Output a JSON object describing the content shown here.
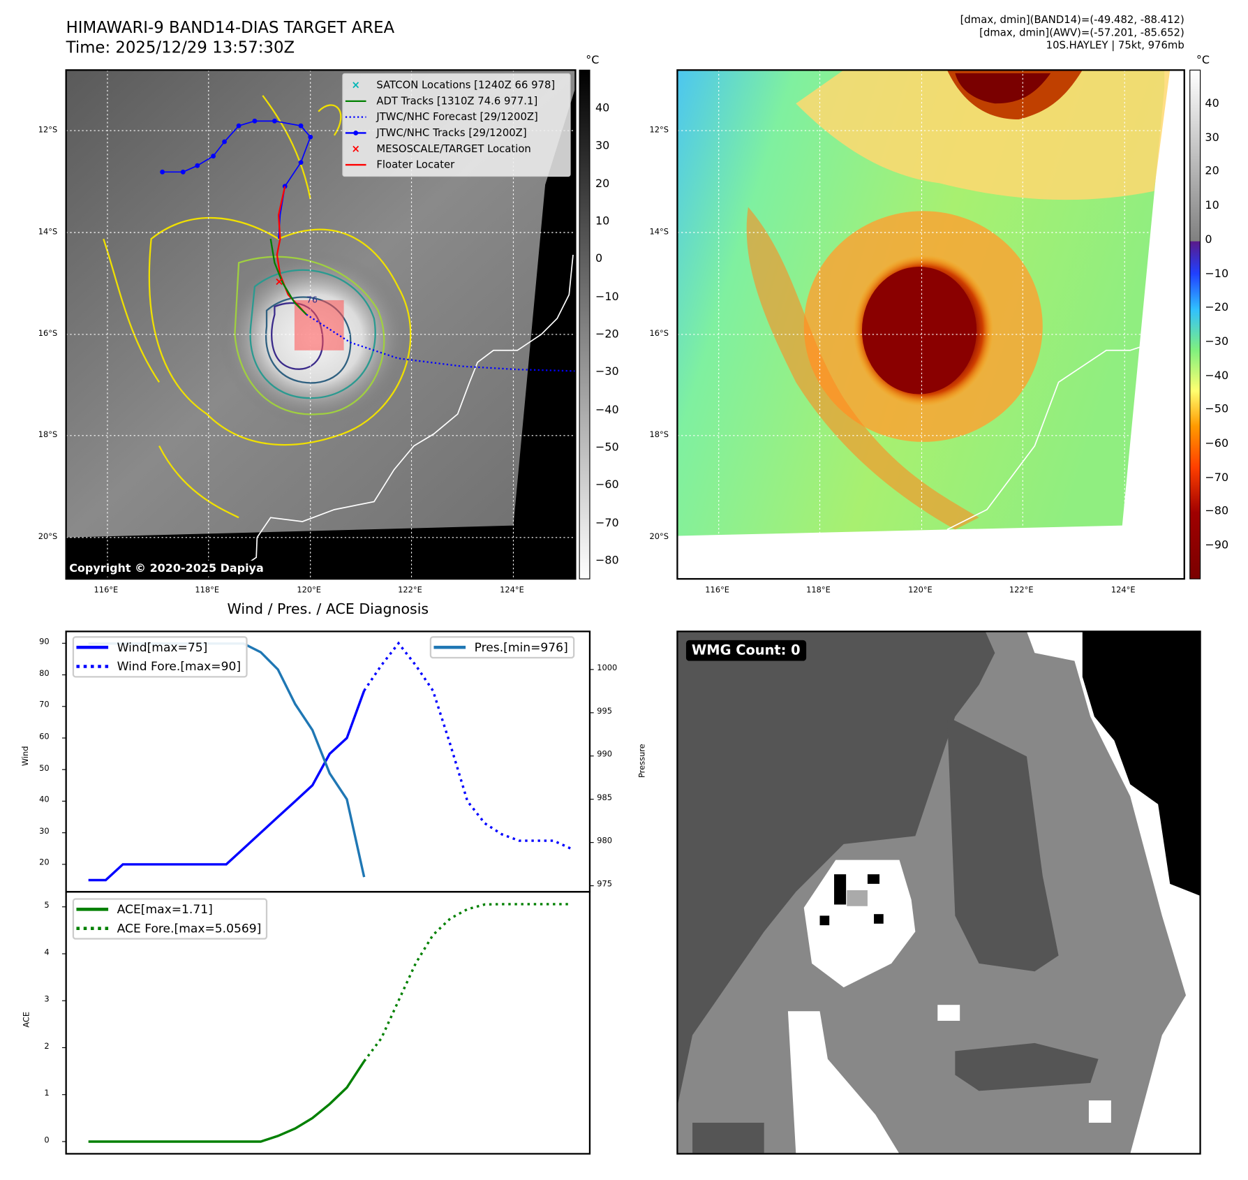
{
  "header": {
    "title_line1": "HIMAWARI-9 BAND14-DIAS TARGET AREA",
    "title_line2": "Time: 2025/12/29 13:57:30Z",
    "info_line1": "[dmax, dmin](BAND14)=(-49.482, -88.412)",
    "info_line2": "[dmax, dmin](AWV)=(-57.201, -85.652)",
    "info_line3": "10S.HAYLEY | 75kt, 976mb"
  },
  "maps": {
    "lat_labels": [
      "12°S",
      "14°S",
      "16°S",
      "18°S",
      "20°S"
    ],
    "lon_labels": [
      "116°E",
      "118°E",
      "120°E",
      "122°E",
      "124°E"
    ],
    "unit_label": "°C",
    "left_colorbar_ticks": [
      "40",
      "30",
      "20",
      "10",
      "0",
      "−10",
      "−20",
      "−30",
      "−40",
      "−50",
      "−60",
      "−70",
      "−80"
    ],
    "right_colorbar_ticks": [
      "40",
      "30",
      "20",
      "10",
      "0",
      "−10",
      "−20",
      "−30",
      "−40",
      "−50",
      "−60",
      "−70",
      "−80",
      "−90"
    ],
    "copyright": "Copyright © 2020-2025 Dapiya",
    "legend": [
      {
        "label": "SATCON Locations [1240Z 66 978]",
        "color": "#00b5b5",
        "icon": "x-marker"
      },
      {
        "label": "ADT Tracks [1310Z 74.6 977.1]",
        "color": "#008000",
        "icon": "line"
      },
      {
        "label": "JTWC/NHC Forecast [29/1200Z]",
        "color": "#0000ff",
        "icon": "dotted-line"
      },
      {
        "label": "JTWC/NHC Tracks [29/1200Z]",
        "color": "#0000ff",
        "icon": "line-dot"
      },
      {
        "label": "MESOSCALE/TARGET Location",
        "color": "#ff0000",
        "icon": "x-marker"
      },
      {
        "label": "Floater Locater",
        "color": "#ff0000",
        "icon": "line"
      }
    ],
    "wind_annotation": "76"
  },
  "wmg": {
    "label": "WMG Count: 0"
  },
  "chart_data": [
    {
      "type": "line",
      "title": "Wind / Pres. / ACE Diagnosis",
      "ylabel": "Wind",
      "ylabel_right": "Pressure",
      "xlim": [
        -1.3,
        29.1
      ],
      "ylim": [
        11.3,
        93.75
      ],
      "ylim_right": [
        974.3,
        1004.4
      ],
      "yticks": [
        20,
        30,
        40,
        50,
        60,
        70,
        80,
        90
      ],
      "yticks_right": [
        975,
        980,
        985,
        990,
        995,
        1000
      ],
      "series": [
        {
          "name": "Wind[max=75]",
          "axis": "left",
          "style": "solid",
          "color": "#0000ff",
          "x0": 0,
          "values": [
            15,
            15,
            20,
            20,
            20,
            20,
            20,
            20,
            20,
            25,
            30,
            35,
            40,
            45,
            55,
            60,
            75
          ]
        },
        {
          "name": "Wind Fore.[max=90]",
          "axis": "left",
          "style": "dotted",
          "color": "#0000ff",
          "x0": 16,
          "values": [
            75,
            83,
            90,
            83,
            75,
            58,
            40,
            33,
            29.5,
            27.5,
            27.5,
            27.5,
            25
          ]
        },
        {
          "name": "Pres.[min=976]",
          "axis": "right",
          "style": "solid",
          "color": "#1f77b4",
          "x0": 0,
          "values": [
            1003,
            1003,
            1003,
            1003,
            1003,
            1003,
            1003,
            1003,
            1003,
            1003,
            1002,
            1000,
            996,
            993,
            988,
            985,
            976
          ]
        }
      ],
      "legend_left": [
        "Wind[max=75]",
        "Wind Fore.[max=90]"
      ],
      "legend_right": [
        "Pres.[min=976]"
      ]
    },
    {
      "type": "line",
      "ylabel": "ACE",
      "xlim": [
        -1.3,
        29.1
      ],
      "ylim": [
        -0.26,
        5.32
      ],
      "yticks": [
        0,
        1,
        2,
        3,
        4,
        5
      ],
      "series": [
        {
          "name": "ACE[max=1.71]",
          "style": "solid",
          "color": "#008000",
          "x0": 0,
          "values": [
            0,
            0,
            0,
            0,
            0,
            0,
            0,
            0,
            0,
            0,
            0,
            0.12,
            0.28,
            0.5,
            0.8,
            1.15,
            1.71
          ]
        },
        {
          "name": "ACE Fore.[max=5.0569]",
          "style": "dotted",
          "color": "#008000",
          "x0": 16,
          "values": [
            1.71,
            2.2,
            3.0,
            3.8,
            4.4,
            4.75,
            4.95,
            5.05,
            5.0569,
            5.0569,
            5.0569,
            5.0569,
            5.0569
          ]
        }
      ],
      "legend": [
        "ACE[max=1.71]",
        "ACE Fore.[max=5.0569]"
      ]
    }
  ]
}
